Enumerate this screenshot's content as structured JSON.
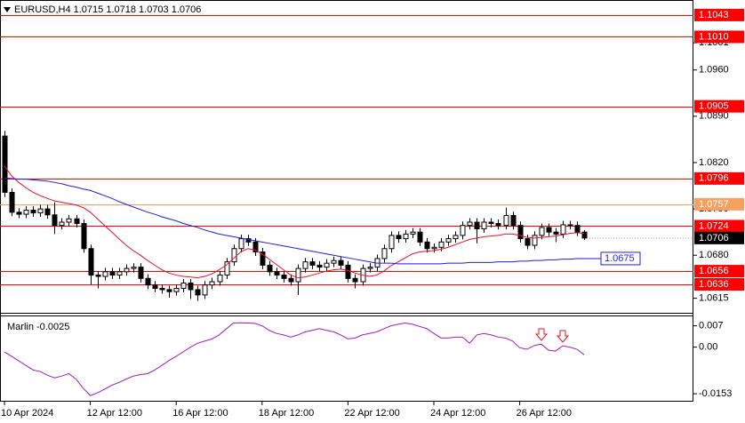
{
  "chart_data": {
    "type": "candlestick",
    "title": "EURUSD,H4  1.0715 1.0718 1.0703 1.0706",
    "categories": [
      "10 Apr 2024",
      null,
      null,
      null,
      null,
      null,
      null,
      null,
      null,
      null,
      null,
      null,
      "12 Apr 12:00",
      null,
      null,
      null,
      null,
      null,
      null,
      null,
      null,
      null,
      null,
      null,
      "16 Apr 12:00",
      null,
      null,
      null,
      null,
      null,
      null,
      null,
      null,
      null,
      null,
      null,
      "18 Apr 12:00",
      null,
      null,
      null,
      null,
      null,
      null,
      null,
      null,
      null,
      null,
      null,
      "22 Apr 12:00",
      null,
      null,
      null,
      null,
      null,
      null,
      null,
      null,
      null,
      null,
      null,
      "24 Apr 12:00",
      null,
      null,
      null,
      null,
      null,
      null,
      null,
      null,
      null,
      null,
      null,
      "26 Apr 12:00",
      null,
      null,
      null,
      null,
      null,
      null,
      null,
      null,
      null
    ],
    "open": [
      1.086,
      1.0775,
      1.0745,
      1.0742,
      1.0748,
      1.0744,
      1.075,
      1.0741,
      1.0725,
      1.073,
      1.0735,
      1.0728,
      1.069,
      1.065,
      1.0648,
      1.0655,
      1.065,
      1.0655,
      1.066,
      1.0662,
      1.0645,
      1.0635,
      1.063,
      1.0628,
      1.0625,
      1.063,
      1.0638,
      1.0628,
      1.062,
      1.0635,
      1.064,
      1.065,
      1.067,
      1.069,
      1.0705,
      1.07,
      1.0685,
      1.0665,
      1.0655,
      1.065,
      1.0645,
      1.064,
      1.066,
      1.067,
      1.0665,
      1.0662,
      1.0668,
      1.0672,
      1.0665,
      1.0645,
      1.064,
      1.066,
      1.0662,
      1.0675,
      1.069,
      1.071,
      1.0705,
      1.0712,
      1.0715,
      1.07,
      1.069,
      1.0692,
      1.07,
      1.0705,
      1.071,
      1.0725,
      1.073,
      1.072,
      1.073,
      1.0728,
      1.0725,
      1.074,
      1.0725,
      1.0705,
      1.0695,
      1.071,
      1.0722,
      1.0715,
      1.0712,
      1.0726,
      1.0725,
      1.0715
    ],
    "high": [
      1.0868,
      1.0781,
      1.0751,
      1.0754,
      1.0754,
      1.0756,
      1.0756,
      1.076,
      1.0736,
      1.0741,
      1.0741,
      1.0734,
      1.0696,
      1.0656,
      1.0661,
      1.0661,
      1.0661,
      1.0666,
      1.0668,
      1.0668,
      1.0651,
      1.0641,
      1.0636,
      1.0634,
      1.0636,
      1.0644,
      1.0644,
      1.0634,
      1.0641,
      1.0646,
      1.0656,
      1.0676,
      1.0696,
      1.0711,
      1.0711,
      1.0706,
      1.0691,
      1.0671,
      1.0661,
      1.0656,
      1.0651,
      1.0666,
      1.0676,
      1.0676,
      1.0671,
      1.0674,
      1.0678,
      1.0678,
      1.0671,
      1.0651,
      1.0666,
      1.0668,
      1.0681,
      1.0696,
      1.0716,
      1.0716,
      1.0718,
      1.0721,
      1.0721,
      1.0706,
      1.0698,
      1.0706,
      1.0711,
      1.0716,
      1.0731,
      1.0736,
      1.0736,
      1.0736,
      1.0736,
      1.0734,
      1.0752,
      1.0746,
      1.0731,
      1.0711,
      1.0716,
      1.0728,
      1.0728,
      1.0721,
      1.0732,
      1.0732,
      1.0731,
      1.0718
    ],
    "low": [
      1.0768,
      1.0739,
      1.0736,
      1.0736,
      1.0738,
      1.0738,
      1.0735,
      1.0712,
      1.0719,
      1.0724,
      1.0722,
      1.0684,
      1.0636,
      1.063,
      1.0642,
      1.0644,
      1.0644,
      1.0649,
      1.0654,
      1.0639,
      1.0629,
      1.0624,
      1.0622,
      1.0616,
      1.0619,
      1.0624,
      1.0614,
      1.0611,
      1.0614,
      1.0629,
      1.0634,
      1.0644,
      1.0664,
      1.0684,
      1.0694,
      1.0679,
      1.0659,
      1.0649,
      1.0644,
      1.0639,
      1.0634,
      1.062,
      1.0654,
      1.0659,
      1.0656,
      1.0656,
      1.0662,
      1.0659,
      1.0639,
      1.063,
      1.0634,
      1.0654,
      1.0656,
      1.0669,
      1.0684,
      1.0699,
      1.0699,
      1.0706,
      1.0694,
      1.0684,
      1.0684,
      1.0686,
      1.0694,
      1.0699,
      1.0704,
      1.0719,
      1.0698,
      1.0714,
      1.0722,
      1.0719,
      1.0719,
      1.0719,
      1.0699,
      1.0689,
      1.0689,
      1.0704,
      1.0709,
      1.07,
      1.0706,
      1.0719,
      1.0709,
      1.0703
    ],
    "close": [
      1.0775,
      1.0745,
      1.0742,
      1.0748,
      1.0744,
      1.075,
      1.0741,
      1.0725,
      1.073,
      1.0735,
      1.0728,
      1.069,
      1.065,
      1.0648,
      1.0655,
      1.065,
      1.0655,
      1.066,
      1.0662,
      1.0645,
      1.0635,
      1.063,
      1.0628,
      1.0625,
      1.063,
      1.0638,
      1.0628,
      1.062,
      1.0635,
      1.064,
      1.065,
      1.067,
      1.069,
      1.0705,
      1.07,
      1.0685,
      1.0665,
      1.0655,
      1.065,
      1.0645,
      1.064,
      1.066,
      1.067,
      1.0665,
      1.0662,
      1.0668,
      1.0672,
      1.0665,
      1.0645,
      1.064,
      1.066,
      1.0662,
      1.0675,
      1.069,
      1.071,
      1.0705,
      1.0712,
      1.0715,
      1.07,
      1.069,
      1.0692,
      1.07,
      1.0705,
      1.071,
      1.0725,
      1.073,
      1.072,
      1.073,
      1.0728,
      1.0725,
      1.074,
      1.0725,
      1.0705,
      1.0695,
      1.071,
      1.0722,
      1.0715,
      1.0712,
      1.0726,
      1.0725,
      1.0715,
      1.0706
    ],
    "overlays": [
      {
        "color": "#e8102a",
        "values": [
          1.0815,
          1.08,
          1.079,
          1.0782,
          1.0775,
          1.077,
          1.0766,
          1.0762,
          1.076,
          1.0758,
          1.0756,
          1.0752,
          1.0745,
          1.0735,
          1.0725,
          1.0715,
          1.0705,
          1.0695,
          1.0687,
          1.068,
          1.0672,
          1.0665,
          1.0658,
          1.0653,
          1.065,
          1.0648,
          1.0647,
          1.0646,
          1.0648,
          1.0652,
          1.0658,
          1.0665,
          1.0675,
          1.0685,
          1.069,
          1.0688,
          1.0682,
          1.0674,
          1.0666,
          1.0658,
          1.065,
          1.0646,
          1.0647,
          1.065,
          1.0653,
          1.0656,
          1.0658,
          1.0659,
          1.0657,
          1.0653,
          1.065,
          1.0648,
          1.065,
          1.0656,
          1.0664,
          1.067,
          1.0676,
          1.0682,
          1.0685,
          1.0686,
          1.0687,
          1.0689,
          1.0692,
          1.0696,
          1.07,
          1.0704,
          1.0706,
          1.0708,
          1.0709,
          1.071,
          1.0712,
          1.0712,
          1.071,
          1.0707,
          1.0706,
          1.0707,
          1.0708,
          1.0709,
          1.0711,
          1.0713,
          1.0714,
          1.0713
        ]
      },
      {
        "color": "#1e1ee6",
        "values": [
          1.0797,
          1.0796,
          1.0795,
          1.0795,
          1.0794,
          1.0793,
          1.0792,
          1.079,
          1.0788,
          1.0785,
          1.0783,
          1.078,
          1.0778,
          1.0774,
          1.077,
          1.0766,
          1.0761,
          1.0757,
          1.0753,
          1.0749,
          1.0745,
          1.0742,
          1.0738,
          1.0735,
          1.0732,
          1.0728,
          1.0725,
          1.0722,
          1.0718,
          1.0715,
          1.0712,
          1.071,
          1.0708,
          1.0706,
          1.0704,
          1.0702,
          1.07,
          1.0698,
          1.0696,
          1.0694,
          1.0692,
          1.069,
          1.0688,
          1.0686,
          1.0684,
          1.0682,
          1.068,
          1.0678,
          1.0676,
          1.0674,
          1.0672,
          1.067,
          1.0668,
          1.0668,
          1.0668,
          1.0667,
          1.0667,
          1.0667,
          1.0667,
          1.0667,
          1.0667,
          1.0667,
          1.0668,
          1.0668,
          1.0668,
          1.0669,
          1.0669,
          1.0669,
          1.0669,
          1.067,
          1.067,
          1.067,
          1.0671,
          1.0671,
          1.0672,
          1.0672,
          1.0673,
          1.0673,
          1.0674,
          1.0674,
          1.0675,
          1.0675
        ],
        "last_label": true
      }
    ],
    "levels": [
      {
        "value": 1.1043,
        "color": "#ff0000"
      },
      {
        "value": 1.101,
        "label": "1.1010",
        "color": "#ff0000"
      },
      {
        "value": 1.0905,
        "color": "#ff0000"
      },
      {
        "value": 1.0796,
        "color": "#ff0000"
      },
      {
        "value": 1.0757,
        "color": "#f7a060"
      },
      {
        "value": 1.0724,
        "color": "#ff0000"
      },
      {
        "value": 1.0656,
        "color": "#ff0000"
      },
      {
        "value": 1.0636,
        "color": "#ff0000"
      }
    ],
    "ylim": [
      1.0593,
      1.1059
    ],
    "yticks": [
      1.1001,
      {
        "value": 1.096,
        "label": "1.0960"
      },
      {
        "value": 1.089,
        "label": "1.0890"
      },
      {
        "value": 1.082,
        "label": "1.0820"
      },
      {
        "value": 1.075,
        "label": "1.0750"
      },
      {
        "value": 1.068,
        "label": "1.0680"
      },
      1.0615
    ],
    "indicator": {
      "title": "Marlin -0.0025",
      "color": "#a01cc0",
      "values": [
        -0.0016,
        -0.003,
        -0.0045,
        -0.006,
        -0.0075,
        -0.008,
        -0.0092,
        -0.0101,
        -0.0095,
        -0.0087,
        -0.0105,
        -0.0135,
        -0.0159,
        -0.015,
        -0.0138,
        -0.0125,
        -0.0116,
        -0.0105,
        -0.0095,
        -0.009,
        -0.0087,
        -0.0075,
        -0.006,
        -0.0044,
        -0.003,
        -0.0015,
        0.0,
        0.0013,
        0.002,
        0.0027,
        0.004,
        0.006,
        0.0079,
        0.008,
        0.0079,
        0.0078,
        0.007,
        0.0055,
        0.0045,
        0.004,
        0.0033,
        0.004,
        0.005,
        0.0055,
        0.0061,
        0.0055,
        0.005,
        0.004,
        0.0027,
        0.003,
        0.004,
        0.0045,
        0.005,
        0.006,
        0.007,
        0.0075,
        0.0079,
        0.0075,
        0.0068,
        0.0061,
        0.0045,
        0.003,
        0.003,
        0.0033,
        0.0033,
        0.0013,
        0.004,
        0.0045,
        0.004,
        0.0033,
        0.003,
        0.002,
        -0.0002,
        -0.0007,
        0.0005,
        0.001,
        -0.001,
        -0.0013,
        0.0004,
        0.0,
        -0.0007,
        -0.0025
      ],
      "ylim": [
        -0.0179,
        0.0101
      ],
      "yticks": [
        0.007,
        {
          "value": 0,
          "label": "0.00"
        },
        -0.0153
      ]
    }
  }
}
